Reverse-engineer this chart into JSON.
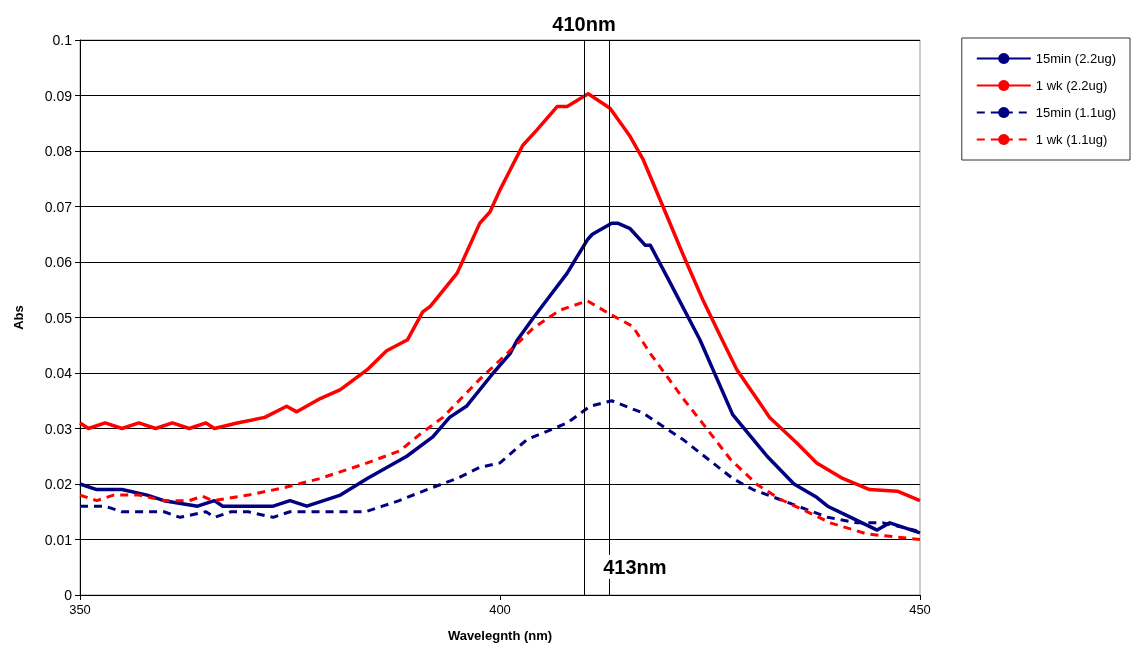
{
  "chart_data": {
    "type": "line",
    "xlabel": "Wavelegnth (nm)",
    "ylabel": "Abs",
    "xlim": [
      350,
      450
    ],
    "xticks": [
      350,
      400,
      450
    ],
    "ylim": [
      0,
      0.1
    ],
    "yticks": [
      0,
      0.01,
      0.02,
      0.03,
      0.04,
      0.05,
      0.06,
      0.07,
      0.08,
      0.09,
      0.1
    ],
    "grid": "y",
    "legend": "top right",
    "marker": "none",
    "ref_lines": [
      {
        "axis": "x",
        "value": 410,
        "label": "410nm",
        "color": "#000000"
      },
      {
        "axis": "x",
        "value": 413,
        "label": "413nm",
        "color": "#000000"
      }
    ],
    "series": [
      {
        "name": "15min (2.2ug)",
        "color": "#000080",
        "line_style": "solid",
        "x": [
          350,
          352,
          355,
          358,
          360,
          364,
          366,
          367,
          370,
          373,
          375,
          377,
          379,
          381,
          384.2,
          388.9,
          392,
          394,
          396,
          399.2,
          401.2,
          402,
          404,
          406,
          408,
          409.2,
          410.4,
          411,
          413.3,
          414,
          415.5,
          417.3,
          417.9,
          420,
          423.8,
          427.7,
          431.8,
          435,
          437.7,
          439,
          442,
          444.9,
          446.4,
          450
        ],
        "values": [
          0.02,
          0.019,
          0.019,
          0.018,
          0.017,
          0.016,
          0.017,
          0.016,
          0.016,
          0.016,
          0.017,
          0.016,
          0.017,
          0.018,
          0.021,
          0.025,
          0.0285,
          0.032,
          0.034,
          0.04,
          0.0435,
          0.0458,
          0.05,
          0.054,
          0.058,
          0.061,
          0.064,
          0.065,
          0.067,
          0.067,
          0.066,
          0.063,
          0.063,
          0.057,
          0.046,
          0.0325,
          0.025,
          0.02,
          0.0176,
          0.016,
          0.0138,
          0.0117,
          0.013,
          0.0112
        ]
      },
      {
        "name": "1 wk (2.2ug)",
        "color": "#ff0000",
        "line_style": "solid",
        "x": [
          350,
          351,
          353,
          355,
          357,
          359,
          361,
          363,
          365,
          366,
          368.7,
          372,
          374.6,
          375.8,
          378.6,
          381,
          384.2,
          386.5,
          389,
          390.8,
          391.7,
          394.9,
          397.6,
          398.8,
          400,
          402.7,
          404.4,
          406.8,
          408,
          410.5,
          413.1,
          415.5,
          417,
          419.4,
          421.8,
          424.2,
          426.5,
          428.2,
          432.1,
          435.4,
          437.7,
          440.8,
          444,
          447.3,
          450
        ],
        "values": [
          0.031,
          0.03,
          0.031,
          0.03,
          0.031,
          0.03,
          0.031,
          0.03,
          0.031,
          0.03,
          0.031,
          0.032,
          0.034,
          0.033,
          0.0354,
          0.037,
          0.0406,
          0.044,
          0.046,
          0.051,
          0.052,
          0.058,
          0.067,
          0.069,
          0.073,
          0.081,
          0.0838,
          0.088,
          0.088,
          0.0903,
          0.0877,
          0.0826,
          0.0786,
          0.07,
          0.0613,
          0.053,
          0.0458,
          0.0406,
          0.032,
          0.0273,
          0.0238,
          0.021,
          0.019,
          0.0187,
          0.017
        ]
      },
      {
        "name": "15min (1.1ug)",
        "color": "#000080",
        "line_style": "dashed",
        "x": [
          350,
          353,
          355,
          360,
          361.9,
          365,
          366,
          368,
          370,
          373,
          375,
          384,
          386,
          388,
          391.3,
          394.9,
          397.6,
          400,
          403.2,
          408,
          410.7,
          413.3,
          417,
          421.8,
          427.7,
          430.1,
          433.7,
          439,
          442.5,
          445.6,
          449.6,
          450
        ],
        "values": [
          0.016,
          0.016,
          0.015,
          0.015,
          0.014,
          0.015,
          0.014,
          0.015,
          0.015,
          0.014,
          0.015,
          0.015,
          0.016,
          0.017,
          0.019,
          0.021,
          0.023,
          0.0238,
          0.028,
          0.031,
          0.034,
          0.035,
          0.0328,
          0.028,
          0.021,
          0.019,
          0.017,
          0.014,
          0.013,
          0.013,
          0.0116,
          0.012
        ]
      },
      {
        "name": "1 wk (1.1ug)",
        "color": "#ff0000",
        "line_style": "dashed",
        "x": [
          350,
          352,
          354,
          357,
          360,
          363,
          364.6,
          365.8,
          370,
          374.2,
          378.6,
          384.2,
          388.1,
          390.5,
          393.2,
          397.6,
          400,
          402.4,
          403.9,
          407.1,
          410.4,
          413.1,
          415.8,
          417.9,
          421.8,
          424.6,
          427.4,
          430.6,
          433.3,
          437.7,
          439.3,
          443.7,
          450
        ],
        "values": [
          0.018,
          0.017,
          0.018,
          0.018,
          0.017,
          0.017,
          0.0178,
          0.017,
          0.018,
          0.0193,
          0.021,
          0.0238,
          0.026,
          0.029,
          0.032,
          0.0389,
          0.0423,
          0.0458,
          0.048,
          0.0513,
          0.053,
          0.0506,
          0.0484,
          0.0435,
          0.0354,
          0.03,
          0.0245,
          0.0199,
          0.0173,
          0.0142,
          0.013,
          0.011,
          0.01
        ]
      }
    ]
  }
}
